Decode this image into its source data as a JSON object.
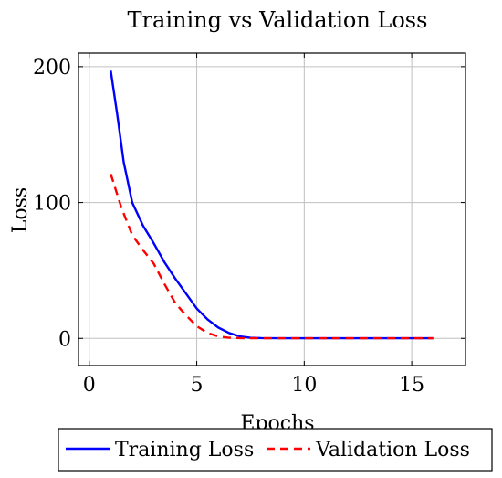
{
  "chart_data": {
    "type": "line",
    "title": "Training vs Validation Loss",
    "xlabel": "Epochs",
    "ylabel": "Loss",
    "xlim": [
      -0.5,
      17.5
    ],
    "ylim": [
      -20,
      210
    ],
    "xticks": [
      0,
      5,
      10,
      15
    ],
    "yticks": [
      0,
      100,
      200
    ],
    "grid": true,
    "legend_position": "bottom-outside",
    "series": [
      {
        "name": "Training Loss",
        "color": "#0000ff",
        "dash": "solid",
        "x": [
          1,
          1.3,
          1.6,
          2,
          2.5,
          3,
          3.5,
          4,
          4.5,
          5,
          5.5,
          6,
          6.5,
          7,
          7.5,
          8,
          9,
          10,
          11,
          12,
          13,
          14,
          15,
          16
        ],
        "y": [
          197,
          165,
          130,
          100,
          83,
          70,
          56,
          44,
          33,
          22,
          14,
          8,
          4,
          1.5,
          0.5,
          0.2,
          0.1,
          0.1,
          0.1,
          0.1,
          0.1,
          0.1,
          0.1,
          0.1
        ]
      },
      {
        "name": "Validation Loss",
        "color": "#ff0000",
        "dash": "dashed",
        "x": [
          1,
          1.5,
          2,
          2.5,
          3,
          3.5,
          4,
          4.5,
          5,
          5.5,
          6,
          6.5,
          7,
          7.5,
          8,
          9,
          10,
          11,
          12,
          13,
          14,
          15,
          16
        ],
        "y": [
          121,
          96,
          76,
          65,
          55,
          40,
          26,
          17,
          9,
          4,
          1.5,
          0.5,
          0.2,
          0.1,
          0.1,
          0.1,
          0.1,
          0.1,
          0.1,
          0.1,
          0.1,
          0.1,
          0.1
        ]
      }
    ]
  }
}
